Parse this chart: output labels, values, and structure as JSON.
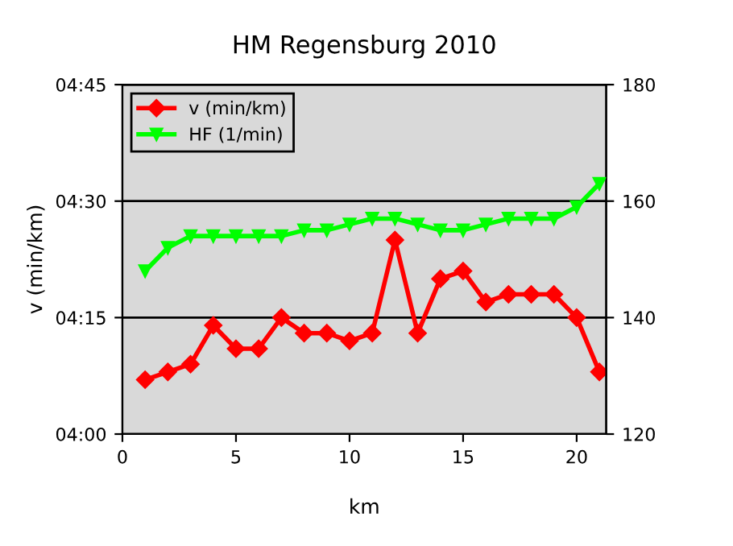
{
  "chart_data": {
    "type": "line",
    "title": "HM Regensburg 2010",
    "xlabel": "km",
    "ylabel": "v (min/km)",
    "x": [
      1,
      2,
      3,
      4,
      5,
      6,
      7,
      8,
      9,
      10,
      11,
      12,
      13,
      14,
      15,
      16,
      17,
      18,
      19,
      20,
      21
    ],
    "series": [
      {
        "name": "v (min/km)",
        "color": "#ff0000",
        "marker": "diamond",
        "values": [
          247,
          248,
          249,
          254,
          251,
          251,
          255,
          253,
          253,
          252,
          253,
          265,
          253,
          260,
          261,
          257,
          258,
          258,
          258,
          255,
          248
        ]
      },
      {
        "name": "HF (1/min)",
        "color": "#00ff00",
        "marker": "triangle",
        "axis": "y2",
        "values": [
          148,
          152,
          154,
          154,
          154,
          154,
          154,
          155,
          155,
          156,
          157,
          157,
          156,
          155,
          155,
          156,
          157,
          157,
          157,
          159,
          163
        ]
      }
    ],
    "xlim": [
      0,
      21.3
    ],
    "xticks": [
      0,
      5,
      10,
      15,
      20
    ],
    "ylim": [
      240,
      285
    ],
    "yticks": [
      {
        "value": 240,
        "label": "04:00"
      },
      {
        "value": 255,
        "label": "04:15"
      },
      {
        "value": 270,
        "label": "04:30"
      },
      {
        "value": 285,
        "label": "04:45"
      }
    ],
    "y2lim": [
      120,
      180
    ],
    "y2ticks": [
      120,
      140,
      160,
      180
    ],
    "grid": "y",
    "legend": "top left"
  }
}
